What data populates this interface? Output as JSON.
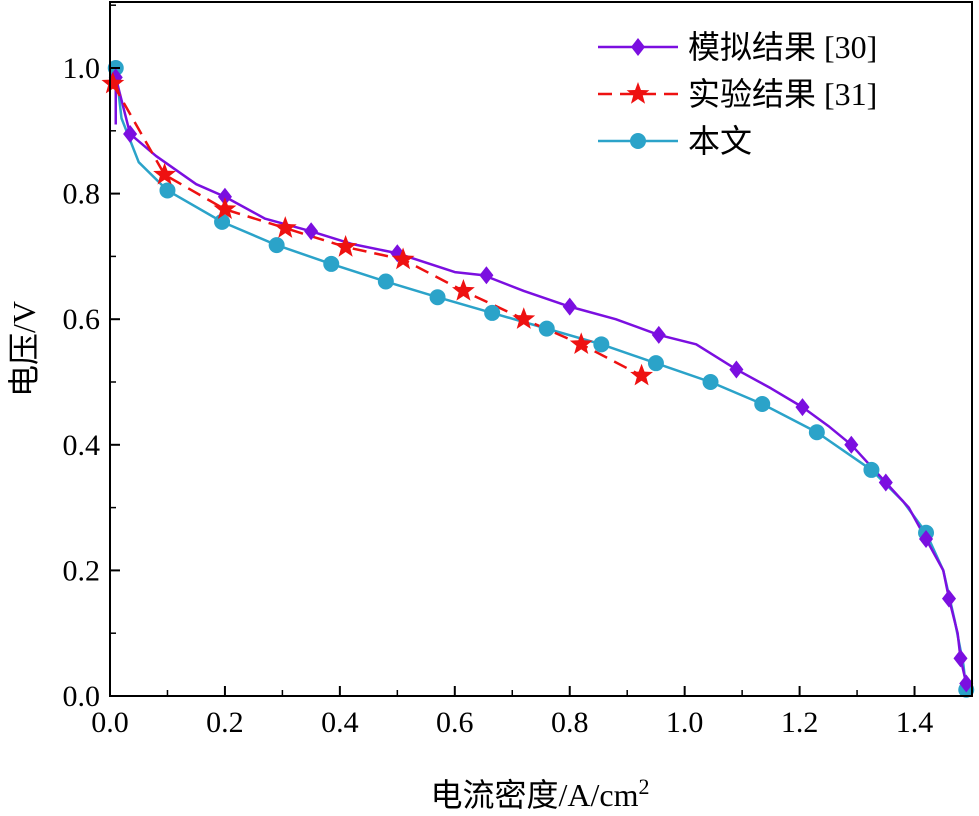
{
  "chart_data": {
    "type": "line",
    "title": "",
    "xlabel": "电流密度/A/cm",
    "xlabel_sup": "2",
    "ylabel": "电压/V",
    "xlim": [
      0.0,
      1.5
    ],
    "ylim": [
      0.0,
      1.1
    ],
    "xticks": [
      0.0,
      0.2,
      0.4,
      0.6,
      0.8,
      1.0,
      1.2,
      1.4
    ],
    "xtick_labels": [
      "0.0",
      "0.2",
      "0.4",
      "0.6",
      "0.8",
      "1.0",
      "1.2",
      "1.4"
    ],
    "yticks": [
      0.0,
      0.2,
      0.4,
      0.6,
      0.8,
      1.0
    ],
    "ytick_labels": [
      "0.0",
      "0.2",
      "0.4",
      "0.6",
      "0.8",
      "1.0"
    ],
    "grid": false,
    "legend_position": "top-right",
    "series": [
      {
        "name": "模拟结果 [30]",
        "color": "#7b0fe0",
        "dash": "solid",
        "marker": "diamond",
        "line": [
          [
            0.01,
            0.91
          ],
          [
            0.01,
            0.985
          ],
          [
            0.035,
            0.895
          ],
          [
            0.08,
            0.86
          ],
          [
            0.15,
            0.815
          ],
          [
            0.2,
            0.795
          ],
          [
            0.27,
            0.76
          ],
          [
            0.35,
            0.74
          ],
          [
            0.42,
            0.72
          ],
          [
            0.5,
            0.705
          ],
          [
            0.6,
            0.675
          ],
          [
            0.65,
            0.67
          ],
          [
            0.72,
            0.645
          ],
          [
            0.8,
            0.62
          ],
          [
            0.88,
            0.6
          ],
          [
            0.955,
            0.575
          ],
          [
            1.02,
            0.56
          ],
          [
            1.09,
            0.52
          ],
          [
            1.15,
            0.49
          ],
          [
            1.205,
            0.46
          ],
          [
            1.25,
            0.43
          ],
          [
            1.29,
            0.4
          ],
          [
            1.35,
            0.34
          ],
          [
            1.39,
            0.3
          ],
          [
            1.42,
            0.25
          ],
          [
            1.45,
            0.2
          ],
          [
            1.46,
            0.155
          ],
          [
            1.475,
            0.1
          ],
          [
            1.48,
            0.06
          ],
          [
            1.49,
            0.02
          ]
        ],
        "points": [
          [
            0.01,
            0.985
          ],
          [
            0.035,
            0.895
          ],
          [
            0.2,
            0.795
          ],
          [
            0.35,
            0.74
          ],
          [
            0.5,
            0.705
          ],
          [
            0.655,
            0.67
          ],
          [
            0.8,
            0.62
          ],
          [
            0.955,
            0.575
          ],
          [
            1.09,
            0.52
          ],
          [
            1.205,
            0.46
          ],
          [
            1.29,
            0.4
          ],
          [
            1.35,
            0.34
          ],
          [
            1.42,
            0.25
          ],
          [
            1.46,
            0.155
          ],
          [
            1.48,
            0.06
          ],
          [
            1.49,
            0.02
          ]
        ]
      },
      {
        "name": "实验结果 [31]",
        "color": "#ee1111",
        "dash": "dashed",
        "marker": "star",
        "line": [
          [
            0.005,
            0.975
          ],
          [
            0.095,
            0.83
          ],
          [
            0.2,
            0.775
          ],
          [
            0.305,
            0.745
          ],
          [
            0.41,
            0.715
          ],
          [
            0.51,
            0.695
          ],
          [
            0.615,
            0.645
          ],
          [
            0.72,
            0.6
          ],
          [
            0.82,
            0.56
          ],
          [
            0.925,
            0.51
          ]
        ],
        "points": [
          [
            0.005,
            0.975
          ],
          [
            0.095,
            0.83
          ],
          [
            0.2,
            0.775
          ],
          [
            0.305,
            0.745
          ],
          [
            0.41,
            0.715
          ],
          [
            0.51,
            0.695
          ],
          [
            0.615,
            0.645
          ],
          [
            0.72,
            0.6
          ],
          [
            0.82,
            0.56
          ],
          [
            0.925,
            0.51
          ]
        ]
      },
      {
        "name": "本文",
        "color": "#2ba3c9",
        "dash": "solid",
        "marker": "circle",
        "line": [
          [
            0.01,
            1.0
          ],
          [
            0.02,
            0.92
          ],
          [
            0.05,
            0.85
          ],
          [
            0.1,
            0.805
          ],
          [
            0.195,
            0.755
          ],
          [
            0.29,
            0.718
          ],
          [
            0.385,
            0.688
          ],
          [
            0.48,
            0.66
          ],
          [
            0.57,
            0.635
          ],
          [
            0.665,
            0.61
          ],
          [
            0.76,
            0.585
          ],
          [
            0.855,
            0.56
          ],
          [
            0.95,
            0.53
          ],
          [
            1.045,
            0.5
          ],
          [
            1.135,
            0.465
          ],
          [
            1.23,
            0.42
          ],
          [
            1.325,
            0.36
          ],
          [
            1.38,
            0.31
          ],
          [
            1.42,
            0.26
          ],
          [
            1.45,
            0.2
          ],
          [
            1.47,
            0.12
          ],
          [
            1.485,
            0.05
          ],
          [
            1.49,
            0.01
          ]
        ],
        "points": [
          [
            0.01,
            1.0
          ],
          [
            0.1,
            0.805
          ],
          [
            0.195,
            0.755
          ],
          [
            0.29,
            0.718
          ],
          [
            0.385,
            0.688
          ],
          [
            0.48,
            0.66
          ],
          [
            0.57,
            0.635
          ],
          [
            0.665,
            0.61
          ],
          [
            0.76,
            0.585
          ],
          [
            0.855,
            0.56
          ],
          [
            0.95,
            0.53
          ],
          [
            1.045,
            0.5
          ],
          [
            1.135,
            0.465
          ],
          [
            1.23,
            0.42
          ],
          [
            1.325,
            0.36
          ],
          [
            1.42,
            0.26
          ],
          [
            1.49,
            0.01
          ]
        ]
      }
    ]
  }
}
